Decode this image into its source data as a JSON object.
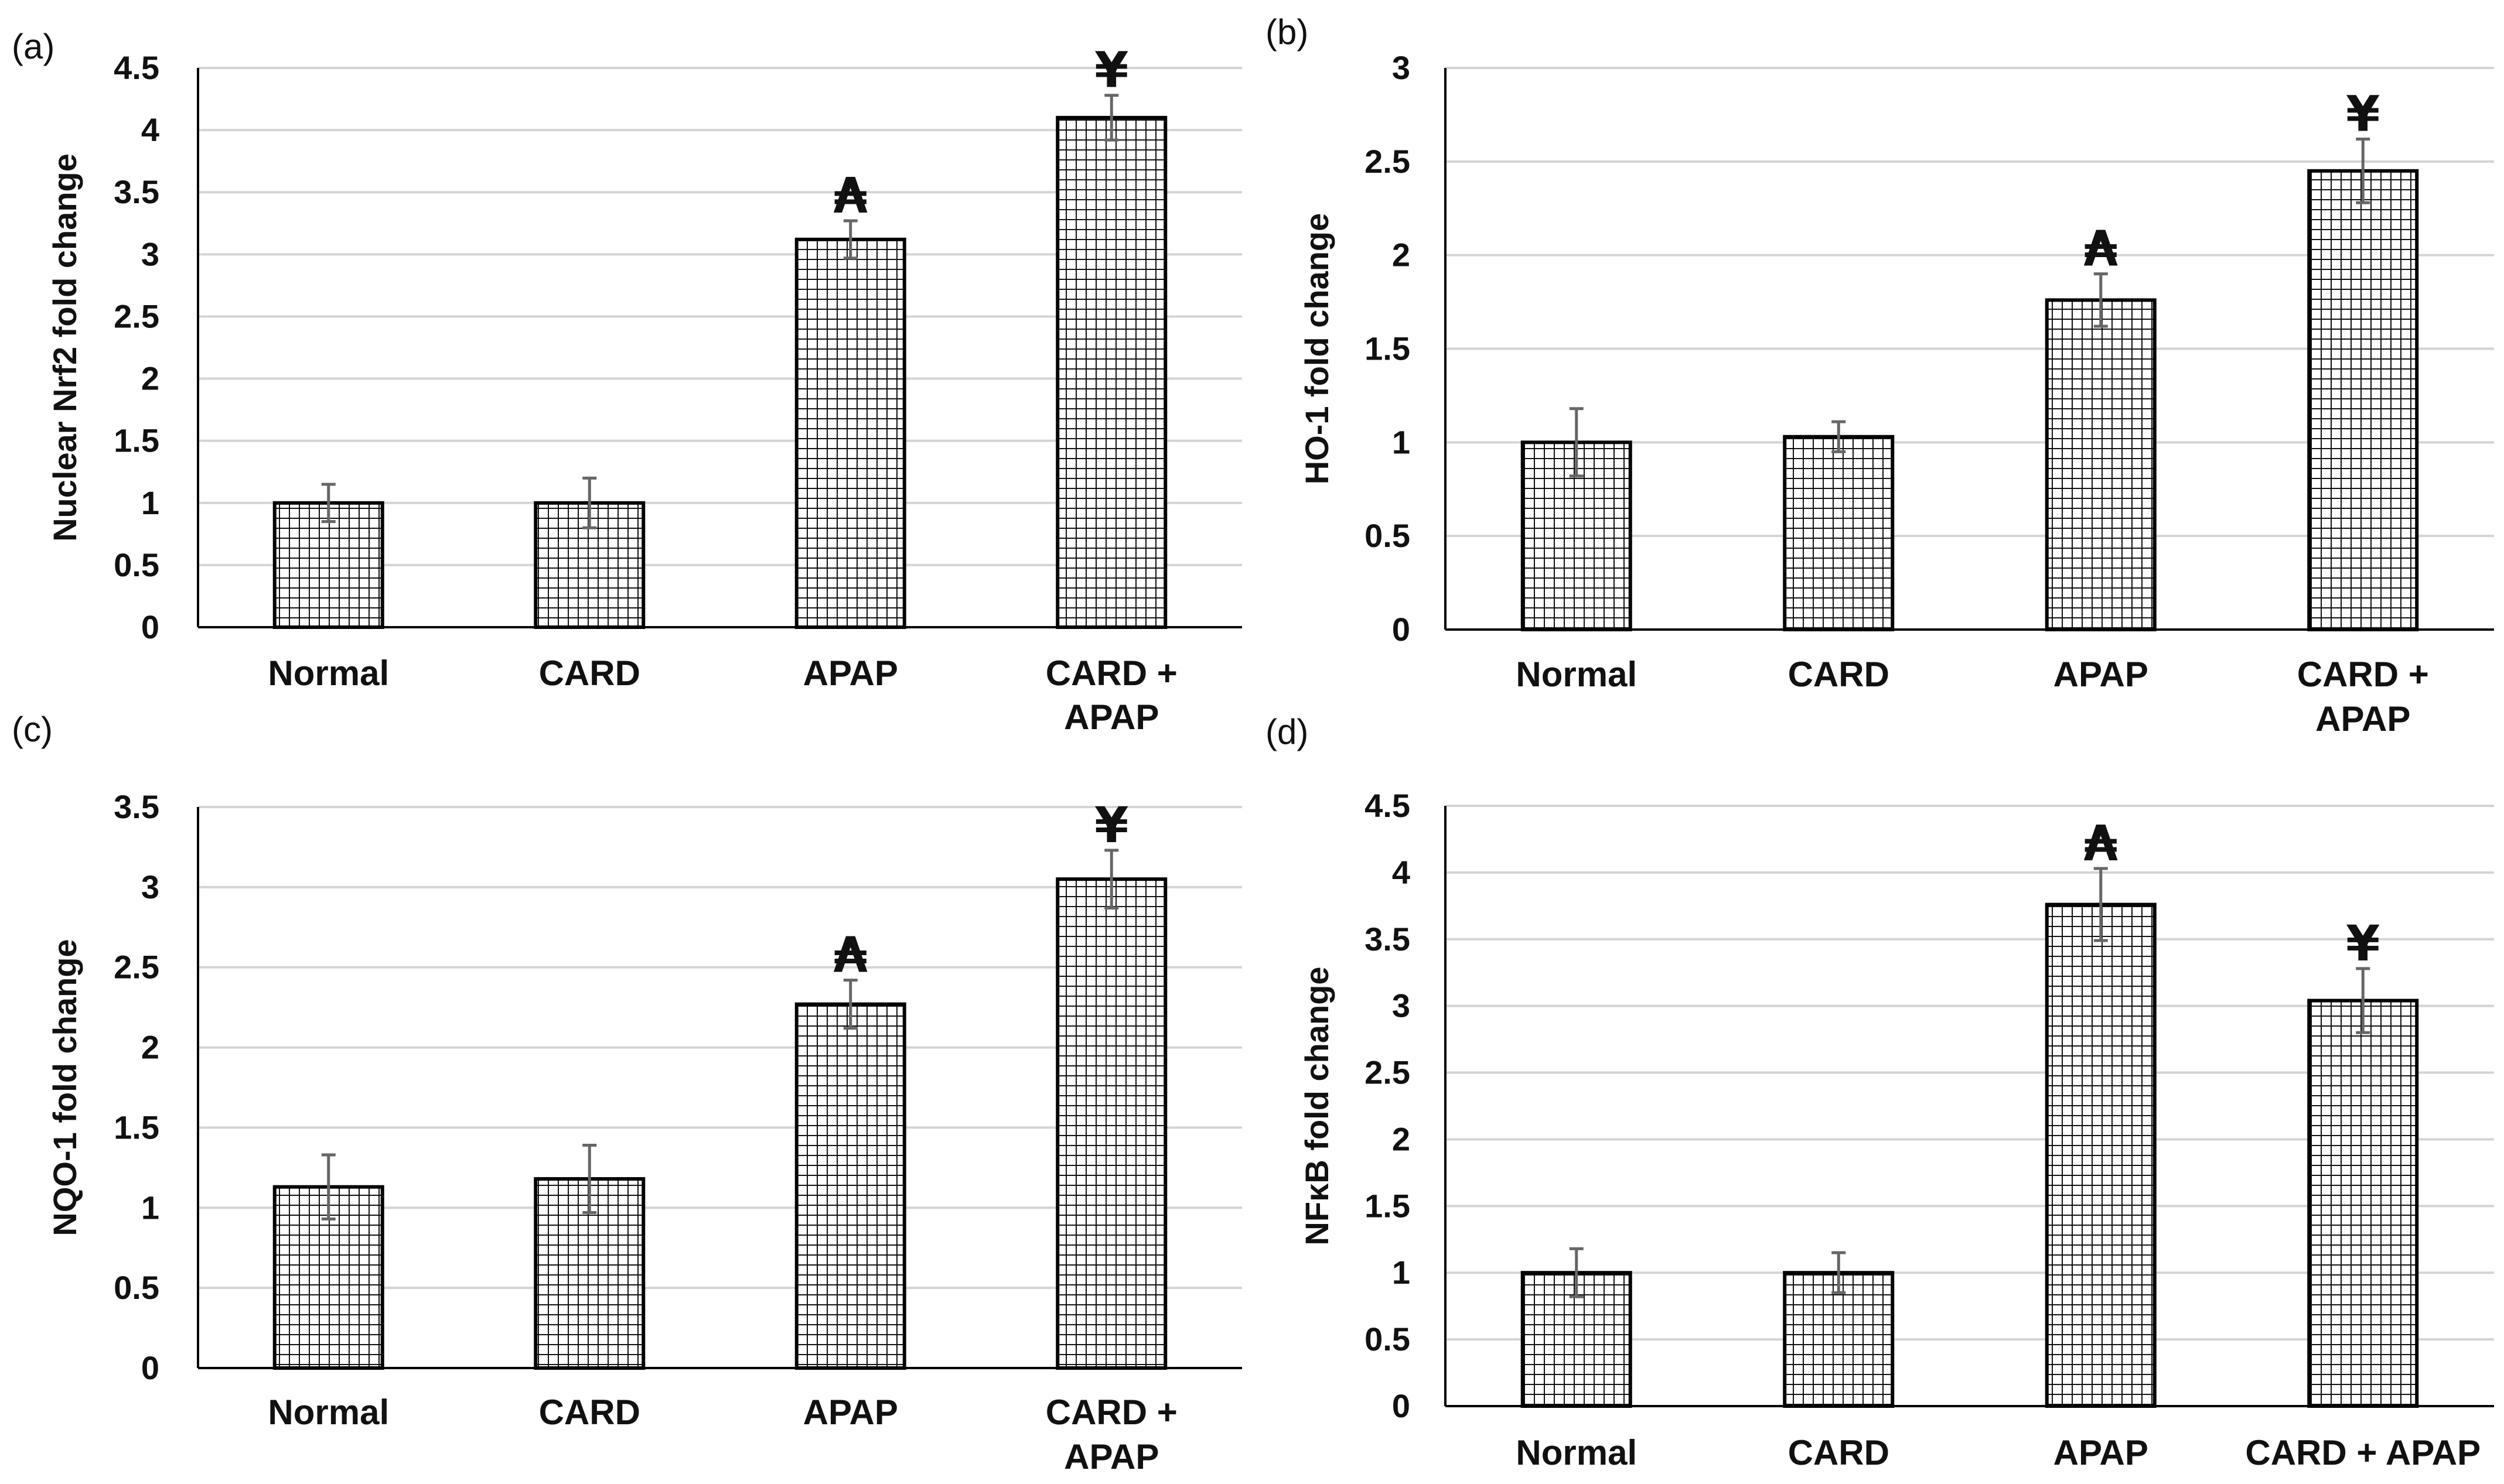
{
  "chart_data": [
    {
      "panel": "(a)",
      "type": "bar",
      "ylabel": "Nuclear Nrf2 fold change",
      "ylim": [
        0,
        4.5
      ],
      "ystep": 0.5,
      "yticks": [
        "0",
        "0.5",
        "1",
        "1.5",
        "2",
        "2.5",
        "3",
        "3.5",
        "4",
        "4.5"
      ],
      "categories": [
        [
          "Normal"
        ],
        [
          "CARD"
        ],
        [
          "APAP"
        ],
        [
          "CARD +",
          "APAP"
        ]
      ],
      "values": [
        1.0,
        1.0,
        3.12,
        4.1
      ],
      "errors": [
        0.15,
        0.2,
        0.15,
        0.18
      ],
      "marks": [
        "",
        "",
        "₳",
        "¥"
      ]
    },
    {
      "panel": "(b)",
      "type": "bar",
      "ylabel": "HO-1 fold change",
      "ylim": [
        0,
        3
      ],
      "ystep": 0.5,
      "yticks": [
        "0",
        "0.5",
        "1",
        "1.5",
        "2",
        "2.5",
        "3"
      ],
      "categories": [
        [
          "Normal"
        ],
        [
          "CARD"
        ],
        [
          "APAP"
        ],
        [
          "CARD +",
          "APAP"
        ]
      ],
      "values": [
        1.0,
        1.03,
        1.76,
        2.45
      ],
      "errors": [
        0.18,
        0.08,
        0.14,
        0.17
      ],
      "marks": [
        "",
        "",
        "₳",
        "¥"
      ]
    },
    {
      "panel": "(c)",
      "type": "bar",
      "ylabel": "NQO-1 fold change",
      "ylim": [
        0,
        3.5
      ],
      "ystep": 0.5,
      "yticks": [
        "0",
        "0.5",
        "1",
        "1.5",
        "2",
        "2.5",
        "3",
        "3.5"
      ],
      "categories": [
        [
          "Normal"
        ],
        [
          "CARD"
        ],
        [
          "APAP"
        ],
        [
          "CARD +",
          "APAP"
        ]
      ],
      "values": [
        1.13,
        1.18,
        2.27,
        3.05
      ],
      "errors": [
        0.2,
        0.21,
        0.15,
        0.18
      ],
      "marks": [
        "",
        "",
        "₳",
        "¥"
      ]
    },
    {
      "panel": "(d)",
      "type": "bar",
      "ylabel": "NFκB  fold change",
      "ylim": [
        0,
        4.5
      ],
      "ystep": 0.5,
      "yticks": [
        "0",
        "0.5",
        "1",
        "1.5",
        "2",
        "2.5",
        "3",
        "3.5",
        "4",
        "4.5"
      ],
      "categories": [
        [
          "Normal"
        ],
        [
          "CARD"
        ],
        [
          "APAP"
        ],
        [
          "CARD + APAP"
        ]
      ],
      "values": [
        1.0,
        1.0,
        3.76,
        3.04
      ],
      "errors": [
        0.18,
        0.15,
        0.27,
        0.24
      ],
      "marks": [
        "",
        "",
        "₳",
        "¥"
      ]
    }
  ]
}
